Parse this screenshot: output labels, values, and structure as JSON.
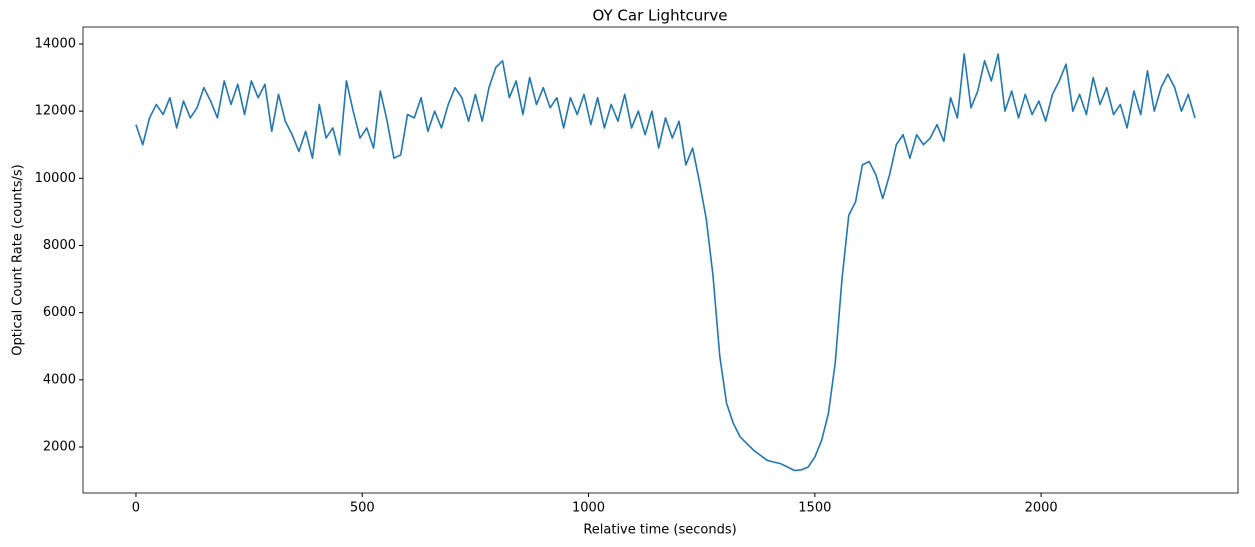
{
  "chart_data": {
    "type": "line",
    "title": "OY Car Lightcurve",
    "x_label": "Relative time (seconds)",
    "y_label": "Optical Count Rate (counts/s)",
    "x": [
      0,
      15,
      30,
      45,
      60,
      75,
      90,
      105,
      120,
      135,
      150,
      165,
      180,
      195,
      210,
      225,
      240,
      255,
      270,
      285,
      300,
      315,
      330,
      345,
      360,
      375,
      390,
      405,
      420,
      435,
      450,
      465,
      480,
      495,
      510,
      525,
      540,
      555,
      570,
      585,
      600,
      615,
      630,
      645,
      660,
      675,
      690,
      705,
      720,
      735,
      750,
      765,
      780,
      795,
      810,
      825,
      840,
      855,
      870,
      885,
      900,
      915,
      930,
      945,
      960,
      975,
      990,
      1005,
      1020,
      1035,
      1050,
      1065,
      1080,
      1095,
      1110,
      1125,
      1140,
      1155,
      1170,
      1185,
      1200,
      1215,
      1230,
      1245,
      1260,
      1275,
      1290,
      1305,
      1320,
      1335,
      1350,
      1365,
      1380,
      1395,
      1410,
      1425,
      1440,
      1455,
      1470,
      1485,
      1500,
      1515,
      1530,
      1545,
      1560,
      1575,
      1590,
      1605,
      1620,
      1635,
      1650,
      1665,
      1680,
      1695,
      1710,
      1725,
      1740,
      1755,
      1770,
      1785,
      1800,
      1815,
      1830,
      1845,
      1860,
      1875,
      1890,
      1905,
      1920,
      1935,
      1950,
      1965,
      1980,
      1995,
      2010,
      2025,
      2040,
      2055,
      2070,
      2085,
      2100,
      2115,
      2130,
      2145,
      2160,
      2175,
      2190,
      2205,
      2220,
      2235,
      2250,
      2265,
      2280,
      2295,
      2310,
      2325,
      2340
    ],
    "series": [
      {
        "color": "#1f77b4",
        "values": [
          11600,
          11000,
          11800,
          12200,
          11900,
          12400,
          11500,
          12300,
          11800,
          12100,
          12700,
          12300,
          11800,
          12900,
          12200,
          12800,
          11900,
          12900,
          12400,
          12800,
          11400,
          12500,
          11700,
          11300,
          10800,
          11400,
          10600,
          12200,
          11200,
          11500,
          10700,
          12900,
          12000,
          11200,
          11500,
          10900,
          12600,
          11700,
          10600,
          10700,
          11900,
          11800,
          12400,
          11400,
          12000,
          11500,
          12200,
          12700,
          12400,
          11700,
          12500,
          11700,
          12700,
          13300,
          13500,
          12400,
          12900,
          11900,
          13000,
          12200,
          12700,
          12100,
          12400,
          11500,
          12400,
          11900,
          12500,
          11600,
          12400,
          11500,
          12200,
          11700,
          12500,
          11500,
          12000,
          11300,
          12000,
          10900,
          11800,
          11200,
          11700,
          10400,
          10900,
          9900,
          8800,
          7100,
          4700,
          3300,
          2700,
          2300,
          2100,
          1900,
          1750,
          1600,
          1550,
          1500,
          1400,
          1300,
          1320,
          1400,
          1700,
          2200,
          3000,
          4500,
          7000,
          8900,
          9300,
          10400,
          10500,
          10100,
          9400,
          10100,
          11000,
          11300,
          10600,
          11300,
          11000,
          11200,
          11600,
          11100,
          12400,
          11800,
          13700,
          12100,
          12600,
          13500,
          12900,
          13700,
          12000,
          12600,
          11800,
          12500,
          11900,
          12300,
          11700,
          12500,
          12900,
          13400,
          12000,
          12500,
          11900,
          13000,
          12200,
          12700,
          11900,
          12200,
          11500,
          12600,
          11900,
          13200,
          12000,
          12700,
          13100,
          12700,
          12000,
          12500,
          11800
        ]
      }
    ],
    "xlim": [
      -117,
      2435
    ],
    "ylim": [
      630,
      14506
    ],
    "xticks": [
      0,
      500,
      1000,
      1500,
      2000
    ],
    "yticks": [
      2000,
      4000,
      6000,
      8000,
      10000,
      12000,
      14000
    ],
    "grid": false
  }
}
